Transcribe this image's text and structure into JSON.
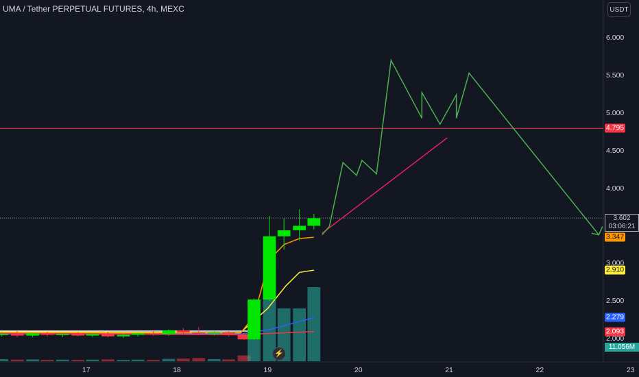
{
  "header": {
    "title": "UMA / Tether PERPETUAL FUTURES, 4h, MEXC"
  },
  "currency_button": "USDT",
  "indicator_button": "⚡",
  "chart_data": {
    "type": "candlestick",
    "title": "UMA / Tether PERPETUAL FUTURES, 4h, MEXC",
    "ylim": [
      1.7,
      6.35
    ],
    "y_ticks": [
      "6.000",
      "5.500",
      "5.000",
      "4.500",
      "4.000",
      "3.000",
      "2.500",
      "2.000"
    ],
    "y_tick_values": [
      6.0,
      5.5,
      5.0,
      4.5,
      4.0,
      3.0,
      2.5,
      2.0
    ],
    "x_ticks": [
      "17",
      "18",
      "19",
      "20",
      "21",
      "22",
      "23"
    ],
    "x_tick_values": [
      17,
      18,
      19,
      20,
      21,
      22,
      23
    ],
    "xlim": [
      16.05,
      22.7
    ],
    "candles": [
      {
        "t": 16.07,
        "o": 2.05,
        "h": 2.09,
        "l": 2.03,
        "c": 2.06
      },
      {
        "t": 16.24,
        "o": 2.06,
        "h": 2.1,
        "l": 2.02,
        "c": 2.04
      },
      {
        "t": 16.41,
        "o": 2.04,
        "h": 2.08,
        "l": 2.02,
        "c": 2.07
      },
      {
        "t": 16.57,
        "o": 2.07,
        "h": 2.09,
        "l": 2.03,
        "c": 2.05
      },
      {
        "t": 16.74,
        "o": 2.05,
        "h": 2.08,
        "l": 2.02,
        "c": 2.06
      },
      {
        "t": 16.91,
        "o": 2.06,
        "h": 2.09,
        "l": 2.03,
        "c": 2.04
      },
      {
        "t": 17.07,
        "o": 2.04,
        "h": 2.07,
        "l": 2.02,
        "c": 2.06
      },
      {
        "t": 17.24,
        "o": 2.06,
        "h": 2.09,
        "l": 2.02,
        "c": 2.03
      },
      {
        "t": 17.41,
        "o": 2.03,
        "h": 2.07,
        "l": 2.01,
        "c": 2.05
      },
      {
        "t": 17.57,
        "o": 2.05,
        "h": 2.08,
        "l": 2.03,
        "c": 2.07
      },
      {
        "t": 17.74,
        "o": 2.07,
        "h": 2.1,
        "l": 2.04,
        "c": 2.06
      },
      {
        "t": 17.91,
        "o": 2.06,
        "h": 2.12,
        "l": 2.04,
        "c": 2.11
      },
      {
        "t": 18.07,
        "o": 2.11,
        "h": 2.14,
        "l": 2.06,
        "c": 2.08
      },
      {
        "t": 18.24,
        "o": 2.08,
        "h": 2.15,
        "l": 2.05,
        "c": 2.07
      },
      {
        "t": 18.41,
        "o": 2.07,
        "h": 2.1,
        "l": 2.04,
        "c": 2.08
      },
      {
        "t": 18.57,
        "o": 2.08,
        "h": 2.1,
        "l": 2.03,
        "c": 2.05
      },
      {
        "t": 18.74,
        "o": 2.05,
        "h": 2.08,
        "l": 1.98,
        "c": 1.99
      },
      {
        "t": 18.85,
        "o": 1.99,
        "h": 2.53,
        "l": 1.98,
        "c": 2.52
      },
      {
        "t": 19.02,
        "o": 2.52,
        "h": 3.63,
        "l": 2.5,
        "c": 3.36
      },
      {
        "t": 19.18,
        "o": 3.36,
        "h": 3.6,
        "l": 3.18,
        "c": 3.44
      },
      {
        "t": 19.35,
        "o": 3.44,
        "h": 3.72,
        "l": 3.3,
        "c": 3.5
      },
      {
        "t": 19.51,
        "o": 3.5,
        "h": 3.66,
        "l": 3.45,
        "c": 3.6
      }
    ],
    "volume": [
      {
        "t": 16.07,
        "v": 0.08,
        "up": true
      },
      {
        "t": 16.24,
        "v": 0.06,
        "up": false
      },
      {
        "t": 16.41,
        "v": 0.07,
        "up": true
      },
      {
        "t": 16.57,
        "v": 0.05,
        "up": false
      },
      {
        "t": 16.74,
        "v": 0.06,
        "up": true
      },
      {
        "t": 16.91,
        "v": 0.05,
        "up": false
      },
      {
        "t": 17.07,
        "v": 0.06,
        "up": true
      },
      {
        "t": 17.24,
        "v": 0.07,
        "up": false
      },
      {
        "t": 17.41,
        "v": 0.05,
        "up": true
      },
      {
        "t": 17.57,
        "v": 0.06,
        "up": true
      },
      {
        "t": 17.74,
        "v": 0.05,
        "up": false
      },
      {
        "t": 17.91,
        "v": 0.09,
        "up": true
      },
      {
        "t": 18.07,
        "v": 0.1,
        "up": false
      },
      {
        "t": 18.24,
        "v": 0.12,
        "up": false
      },
      {
        "t": 18.41,
        "v": 0.08,
        "up": true
      },
      {
        "t": 18.57,
        "v": 0.07,
        "up": false
      },
      {
        "t": 18.74,
        "v": 0.22,
        "up": false
      },
      {
        "t": 18.85,
        "v": 1.0,
        "up": true
      },
      {
        "t": 19.02,
        "v": 3.5,
        "up": true
      },
      {
        "t": 19.18,
        "v": 2.0,
        "up": true
      },
      {
        "t": 19.35,
        "v": 2.0,
        "up": true
      },
      {
        "t": 19.51,
        "v": 2.8,
        "up": true
      }
    ],
    "moving_averages": [
      {
        "color": "#ffffff",
        "points": [
          [
            16.05,
            2.1
          ],
          [
            18.8,
            2.1
          ]
        ]
      },
      {
        "color": "#ffeb3b",
        "points": [
          [
            16.05,
            2.09
          ],
          [
            18.7,
            2.08
          ],
          [
            19.0,
            2.4
          ],
          [
            19.2,
            2.7
          ],
          [
            19.35,
            2.88
          ],
          [
            19.51,
            2.91
          ]
        ]
      },
      {
        "color": "#ff9800",
        "points": [
          [
            16.05,
            2.08
          ],
          [
            18.7,
            2.07
          ],
          [
            18.85,
            2.3
          ],
          [
            19.02,
            3.05
          ],
          [
            19.18,
            3.25
          ],
          [
            19.35,
            3.33
          ],
          [
            19.51,
            3.347
          ]
        ]
      },
      {
        "color": "#2962ff",
        "points": [
          [
            16.05,
            2.06
          ],
          [
            18.7,
            2.06
          ],
          [
            19.02,
            2.12
          ],
          [
            19.51,
            2.279
          ]
        ]
      },
      {
        "color": "#f23645",
        "points": [
          [
            16.05,
            2.07
          ],
          [
            18.7,
            2.05
          ],
          [
            19.02,
            2.07
          ],
          [
            19.51,
            2.093
          ]
        ]
      }
    ],
    "horizontal_line": {
      "value": 4.795,
      "color": "#f23645"
    },
    "current_price": 3.602,
    "drawings": [
      {
        "color": "#e91e63",
        "points": [
          [
            19.6,
            3.4
          ],
          [
            20.98,
            4.67
          ]
        ]
      },
      {
        "color": "#4caf50",
        "points": [
          [
            19.6,
            3.38
          ],
          [
            19.68,
            3.49
          ],
          [
            19.83,
            4.34
          ],
          [
            19.98,
            4.17
          ],
          [
            20.04,
            4.37
          ],
          [
            20.2,
            4.19
          ],
          [
            20.36,
            5.7
          ],
          [
            20.7,
            4.93
          ],
          [
            20.7,
            5.27
          ],
          [
            20.9,
            4.85
          ],
          [
            21.08,
            5.24
          ],
          [
            21.08,
            4.93
          ],
          [
            21.22,
            5.53
          ],
          [
            22.65,
            3.38
          ],
          [
            22.69,
            3.49
          ]
        ]
      },
      {
        "color": "#4caf50",
        "points": [
          [
            22.57,
            3.4
          ],
          [
            22.65,
            3.38
          ]
        ]
      }
    ],
    "price_labels": [
      {
        "text": "4.795",
        "bg": "#f23645",
        "fg": "#ffffff",
        "value": 4.795
      },
      {
        "text": "3.347",
        "bg": "#ff9800",
        "fg": "#131722",
        "value": 3.347
      },
      {
        "text": "2.910",
        "bg": "#ffeb3b",
        "fg": "#131722",
        "value": 2.91
      },
      {
        "text": "2.279",
        "bg": "#2962ff",
        "fg": "#ffffff",
        "value": 2.279
      },
      {
        "text": "2.093",
        "bg": "#f23645",
        "fg": "#ffffff",
        "value": 2.093
      }
    ],
    "current_price_label": "3.602",
    "countdown": "03:06:21",
    "volume_label": "11.056M",
    "colors": {
      "up": "#00e600",
      "down": "#f23645",
      "volume_up": "#26a69a",
      "volume_down": "#f23645"
    }
  }
}
